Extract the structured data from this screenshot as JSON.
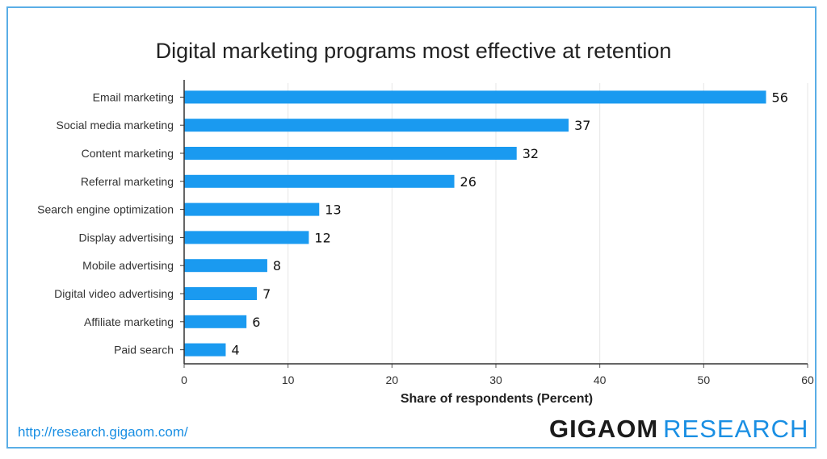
{
  "chart_data": {
    "type": "bar",
    "orientation": "horizontal",
    "title": "Digital marketing programs most effective at retention",
    "xlabel": "Share of respondents (Percent)",
    "ylabel": "",
    "xlim": [
      0,
      60
    ],
    "xticks": [
      0,
      10,
      20,
      30,
      40,
      50,
      60
    ],
    "grid": true,
    "categories": [
      "Email marketing",
      "Social media marketing",
      "Content marketing",
      "Referral marketing",
      "Search engine optimization",
      "Display advertising",
      "Mobile advertising",
      "Digital video advertising",
      "Affiliate marketing",
      "Paid search"
    ],
    "values": [
      56,
      37,
      32,
      26,
      13,
      12,
      8,
      7,
      6,
      4
    ],
    "bar_color": "#1a9af0"
  },
  "footer": {
    "source_url": "http://research.gigaom.com/",
    "brand_bold": "GIGAOM",
    "brand_light": "RESEARCH"
  },
  "colors": {
    "frame": "#5aaee6",
    "link": "#1a8fe3",
    "grid": "#e6e6e6"
  }
}
